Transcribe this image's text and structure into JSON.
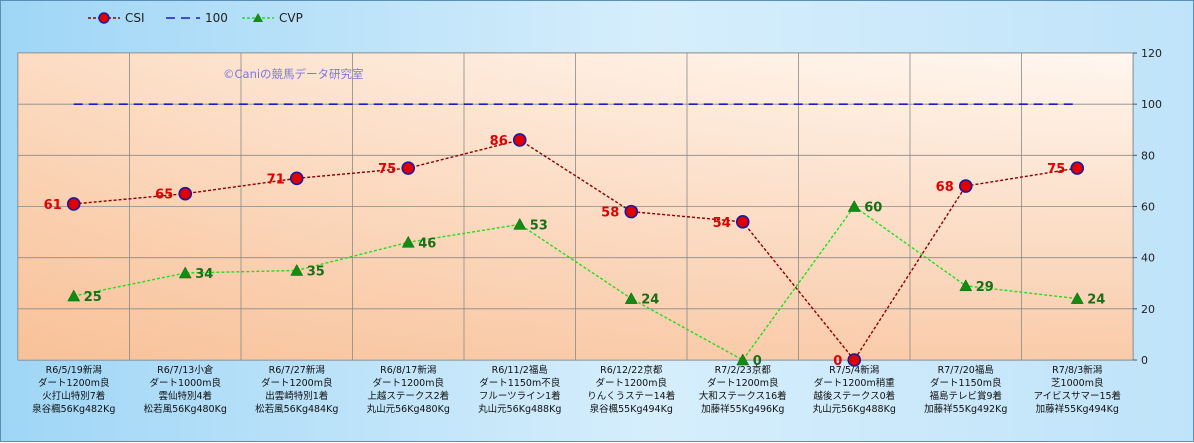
{
  "chart_data": {
    "type": "line",
    "watermark": "©Caniの競馬データ研究室",
    "categories": [
      [
        "R6/5/19新潟",
        "ダート1200m良",
        "火打山特別7着",
        "泉谷楓56Kg482Kg"
      ],
      [
        "R6/7/13小倉",
        "ダート1000m良",
        "雲仙特別4着",
        "松若風56Kg480Kg"
      ],
      [
        "R6/7/27新潟",
        "ダート1200m良",
        "出雲崎特別1着",
        "松若風56Kg484Kg"
      ],
      [
        "R6/8/17新潟",
        "ダート1200m良",
        "上越ステークス2着",
        "丸山元56Kg480Kg"
      ],
      [
        "R6/11/2福島",
        "ダート1150m不良",
        "フルーツライン1着",
        "丸山元56Kg488Kg"
      ],
      [
        "R6/12/22京都",
        "ダート1200m良",
        "りんくうステー14着",
        "泉谷楓55Kg494Kg"
      ],
      [
        "R7/2/23京都",
        "ダート1200m良",
        "大和ステークス16着",
        "加藤祥55Kg496Kg"
      ],
      [
        "R7/5/4新潟",
        "ダート1200m稍重",
        "越後ステークス0着",
        "丸山元56Kg488Kg"
      ],
      [
        "R7/7/20福島",
        "ダート1150m良",
        "福島テレビ賞9着",
        "加藤祥55Kg492Kg"
      ],
      [
        "R7/8/3新潟",
        "芝1000m良",
        "アイビスサマー15着",
        "加藤祥55Kg494Kg"
      ]
    ],
    "series": [
      {
        "name": "CSI",
        "values": [
          61,
          65,
          71,
          75,
          86,
          58,
          54,
          0,
          68,
          75
        ],
        "color": "#8b0000",
        "marker": "circle",
        "marker_fill": "#e00000",
        "marker_stroke": "#1a1aa0"
      },
      {
        "name": "100",
        "values": [
          100,
          100,
          100,
          100,
          100,
          100,
          100,
          100,
          100,
          100
        ],
        "color": "#1a1ad0",
        "marker": "none"
      },
      {
        "name": "CVP",
        "values": [
          25,
          34,
          35,
          46,
          53,
          24,
          0,
          60,
          29,
          24
        ],
        "color": "#22dd22",
        "marker": "triangle",
        "marker_fill": "#128c12"
      }
    ],
    "ylim": [
      0,
      120
    ],
    "yticks": [
      0,
      20,
      40,
      60,
      80,
      100,
      120
    ],
    "y_axis_side": "right",
    "grid": true,
    "legend_position": "top-left"
  }
}
